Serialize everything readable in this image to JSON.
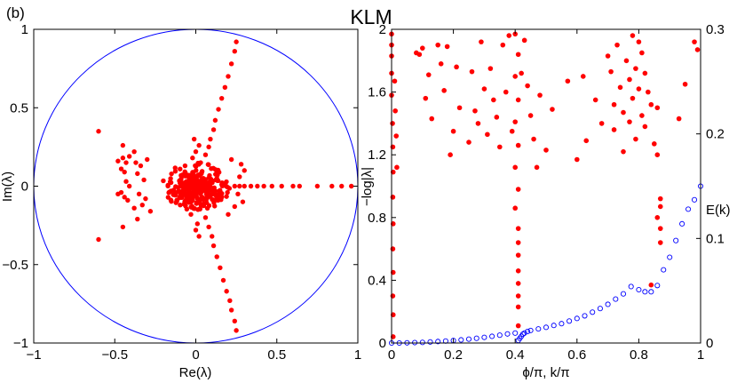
{
  "figure": {
    "panel_label": "(b)",
    "title": "KLM"
  },
  "colors": {
    "marker": "#ff0000",
    "marker_edge": "#cc0000",
    "circle": "#0000ff",
    "open_marker": "#0000ff",
    "axis": "#000000"
  },
  "chart_data": [
    {
      "type": "scatter",
      "name": "eigenvalue-plane",
      "title": "",
      "xlabel": "Re(λ)",
      "ylabel": "Im(λ)",
      "xlim": [
        -1,
        1
      ],
      "ylim": [
        -1,
        1
      ],
      "xticks": [
        -1,
        -0.5,
        0,
        0.5,
        1
      ],
      "xtick_labels": [
        "−1",
        "−0.5",
        "0",
        "0.5",
        "1"
      ],
      "yticks": [
        -1,
        -0.5,
        0,
        0.5,
        1
      ],
      "ytick_labels": [
        "−1",
        "−0.5",
        "0",
        "0.5",
        "1"
      ],
      "unit_circle": {
        "center": [
          0,
          0
        ],
        "radius": 1
      },
      "series": [
        {
          "name": "eigenvalues",
          "marker": "filled-dot",
          "points": [
            [
              0.25,
              0.92
            ],
            [
              0.24,
              0.86
            ],
            [
              0.22,
              0.78
            ],
            [
              0.2,
              0.7
            ],
            [
              0.18,
              0.63
            ],
            [
              0.16,
              0.56
            ],
            [
              0.14,
              0.49
            ],
            [
              0.12,
              0.42
            ],
            [
              0.11,
              0.36
            ],
            [
              0.09,
              0.3
            ],
            [
              0.08,
              0.25
            ],
            [
              0.06,
              0.2
            ],
            [
              0.25,
              -0.92
            ],
            [
              0.24,
              -0.86
            ],
            [
              0.22,
              -0.79
            ],
            [
              0.21,
              -0.73
            ],
            [
              0.19,
              -0.67
            ],
            [
              0.17,
              -0.6
            ],
            [
              0.15,
              -0.52
            ],
            [
              0.13,
              -0.45
            ],
            [
              0.11,
              -0.38
            ],
            [
              0.1,
              -0.32
            ],
            [
              0.08,
              -0.26
            ],
            [
              0.06,
              -0.2
            ],
            [
              -0.6,
              0.35
            ],
            [
              -0.6,
              -0.34
            ],
            [
              -0.45,
              0.26
            ],
            [
              -0.45,
              -0.26
            ],
            [
              -0.38,
              0.22
            ],
            [
              -0.36,
              -0.21
            ],
            [
              -0.3,
              0.17
            ],
            [
              -0.28,
              -0.16
            ],
            [
              0.96,
              0.0
            ],
            [
              0.9,
              0.0
            ],
            [
              0.84,
              0.0
            ],
            [
              0.75,
              0.0
            ],
            [
              0.64,
              0.0
            ],
            [
              0.6,
              0.0
            ],
            [
              0.53,
              0.0
            ],
            [
              0.47,
              0.0
            ],
            [
              0.42,
              0.0
            ],
            [
              0.38,
              0.0
            ],
            [
              0.34,
              0.0
            ],
            [
              0.3,
              0.0
            ],
            [
              0.27,
              0.0
            ],
            [
              0.24,
              0.0
            ],
            [
              -0.02,
              0.18
            ],
            [
              0.0,
              0.22
            ],
            [
              0.02,
              0.26
            ],
            [
              -0.01,
              0.3
            ],
            [
              0.03,
              0.15
            ],
            [
              -0.03,
              -0.18
            ],
            [
              0.01,
              -0.24
            ],
            [
              0.0,
              -0.28
            ],
            [
              0.02,
              -0.32
            ],
            [
              -0.45,
              0.18
            ],
            [
              -0.43,
              0.15
            ],
            [
              -0.46,
              0.11
            ],
            [
              -0.44,
              0.09
            ],
            [
              -0.48,
              0.16
            ],
            [
              -0.41,
              0.19
            ],
            [
              -0.46,
              -0.04
            ],
            [
              -0.44,
              -0.07
            ],
            [
              -0.48,
              -0.05
            ],
            [
              -0.42,
              -0.09
            ],
            [
              -0.43,
              0.03
            ],
            [
              -0.41,
              0.0
            ],
            [
              -0.36,
              0.08
            ],
            [
              -0.34,
              0.13
            ],
            [
              -0.32,
              0.04
            ],
            [
              -0.35,
              -0.05
            ],
            [
              -0.33,
              -0.12
            ],
            [
              -0.31,
              -0.08
            ],
            [
              -0.38,
              -0.14
            ],
            [
              -0.37,
              0.15
            ],
            [
              0.28,
              0.14
            ],
            [
              0.3,
              0.1
            ],
            [
              0.27,
              0.06
            ],
            [
              0.26,
              -0.05
            ],
            [
              0.29,
              -0.1
            ],
            [
              0.24,
              -0.13
            ],
            [
              0.22,
              0.17
            ],
            [
              0.2,
              -0.18
            ]
          ]
        }
      ]
    },
    {
      "type": "scatter",
      "name": "spectrum-vs-phase",
      "title": "",
      "xlabel": "ϕ/π, k/π",
      "ylabel": "−log|λ|",
      "right_ylabel": "E(k)",
      "xlim": [
        0,
        1
      ],
      "ylim": [
        0,
        2
      ],
      "right_ylim": [
        0,
        0.3
      ],
      "xticks": [
        0,
        0.2,
        0.4,
        0.6,
        0.8,
        1
      ],
      "xtick_labels": [
        "0",
        "0.2",
        "0.4",
        "0.6",
        "0.8",
        "1"
      ],
      "yticks": [
        0,
        0.4,
        0.8,
        1.2,
        1.6,
        2
      ],
      "ytick_labels": [
        "0",
        "0.4",
        "0.8",
        "1.2",
        "1.6",
        "2"
      ],
      "right_yticks": [
        0,
        0.1,
        0.2,
        0.3
      ],
      "right_ytick_labels": [
        "0",
        "0.1",
        "0.2",
        "0.3"
      ],
      "series": [
        {
          "name": "-log|lambda| vs phi",
          "axis": "left",
          "marker": "filled-dot",
          "points": [
            [
              0.0,
              1.97
            ],
            [
              0.0,
              1.9
            ],
            [
              0.0,
              1.83
            ],
            [
              0.0,
              1.72
            ],
            [
              0.0,
              1.58
            ],
            [
              0.003,
              1.4
            ],
            [
              0.004,
              1.25
            ],
            [
              0.005,
              1.09
            ],
            [
              0.004,
              0.93
            ],
            [
              0.005,
              0.76
            ],
            [
              0.004,
              0.6
            ],
            [
              0.005,
              0.45
            ],
            [
              0.004,
              0.3
            ],
            [
              0.005,
              0.18
            ],
            [
              0.005,
              0.04
            ],
            [
              0.01,
              1.67
            ],
            [
              0.012,
              1.48
            ],
            [
              0.015,
              1.32
            ],
            [
              0.017,
              1.12
            ],
            [
              0.08,
              1.85
            ],
            [
              0.09,
              1.84
            ],
            [
              0.1,
              1.88
            ],
            [
              0.11,
              1.56
            ],
            [
              0.12,
              1.71
            ],
            [
              0.13,
              1.43
            ],
            [
              0.15,
              1.9
            ],
            [
              0.16,
              1.78
            ],
            [
              0.17,
              1.61
            ],
            [
              0.18,
              1.89
            ],
            [
              0.19,
              1.2
            ],
            [
              0.2,
              1.35
            ],
            [
              0.21,
              1.76
            ],
            [
              0.22,
              1.5
            ],
            [
              0.25,
              1.28
            ],
            [
              0.26,
              1.73
            ],
            [
              0.27,
              1.48
            ],
            [
              0.28,
              1.4
            ],
            [
              0.29,
              1.92
            ],
            [
              0.3,
              1.62
            ],
            [
              0.31,
              1.33
            ],
            [
              0.32,
              1.75
            ],
            [
              0.33,
              1.55
            ],
            [
              0.34,
              1.44
            ],
            [
              0.35,
              1.25
            ],
            [
              0.36,
              1.9
            ],
            [
              0.37,
              1.6
            ],
            [
              0.38,
              1.96
            ],
            [
              0.39,
              1.35
            ],
            [
              0.4,
              1.97
            ],
            [
              0.41,
              1.84
            ],
            [
              0.4,
              1.7
            ],
            [
              0.41,
              1.55
            ],
            [
              0.4,
              1.41
            ],
            [
              0.41,
              1.26
            ],
            [
              0.4,
              1.12
            ],
            [
              0.41,
              0.98
            ],
            [
              0.4,
              0.86
            ],
            [
              0.41,
              0.73
            ],
            [
              0.41,
              0.64
            ],
            [
              0.41,
              0.56
            ],
            [
              0.41,
              0.46
            ],
            [
              0.41,
              0.38
            ],
            [
              0.41,
              0.3
            ],
            [
              0.41,
              0.23
            ],
            [
              0.41,
              0.11
            ],
            [
              0.42,
              1.72
            ],
            [
              0.43,
              1.93
            ],
            [
              0.44,
              1.64
            ],
            [
              0.45,
              1.45
            ],
            [
              0.46,
              1.3
            ],
            [
              0.47,
              1.12
            ],
            [
              0.48,
              1.58
            ],
            [
              0.5,
              1.23
            ],
            [
              0.52,
              1.49
            ],
            [
              0.57,
              1.67
            ],
            [
              0.6,
              1.17
            ],
            [
              0.62,
              1.7
            ],
            [
              0.63,
              1.29
            ],
            [
              0.66,
              1.55
            ],
            [
              0.68,
              1.4
            ],
            [
              0.7,
              1.83
            ],
            [
              0.71,
              1.73
            ],
            [
              0.72,
              1.52
            ],
            [
              0.72,
              1.36
            ],
            [
              0.73,
              1.9
            ],
            [
              0.74,
              1.63
            ],
            [
              0.75,
              1.47
            ],
            [
              0.75,
              1.22
            ],
            [
              0.76,
              1.8
            ],
            [
              0.77,
              1.68
            ],
            [
              0.77,
              1.41
            ],
            [
              0.78,
              1.96
            ],
            [
              0.78,
              1.56
            ],
            [
              0.79,
              1.75
            ],
            [
              0.79,
              1.3
            ],
            [
              0.8,
              1.92
            ],
            [
              0.8,
              1.62
            ],
            [
              0.81,
              1.85
            ],
            [
              0.81,
              1.45
            ],
            [
              0.82,
              1.72
            ],
            [
              0.82,
              1.38
            ],
            [
              0.83,
              1.6
            ],
            [
              0.84,
              1.52
            ],
            [
              0.85,
              1.27
            ],
            [
              0.86,
              1.5
            ],
            [
              0.86,
              1.2
            ],
            [
              0.87,
              0.92
            ],
            [
              0.87,
              0.87
            ],
            [
              0.86,
              0.8
            ],
            [
              0.87,
              0.73
            ],
            [
              0.87,
              0.64
            ],
            [
              0.84,
              0.37
            ],
            [
              0.93,
              1.43
            ],
            [
              0.95,
              1.65
            ],
            [
              0.98,
              1.92
            ],
            [
              0.99,
              1.87
            ]
          ]
        },
        {
          "name": "E(k)",
          "axis": "right",
          "marker": "open-circle",
          "points": [
            [
              0.0,
              0.0
            ],
            [
              0.025,
              0.0
            ],
            [
              0.05,
              0.0002
            ],
            [
              0.075,
              0.0004
            ],
            [
              0.1,
              0.0006
            ],
            [
              0.125,
              0.001
            ],
            [
              0.15,
              0.0014
            ],
            [
              0.175,
              0.0019
            ],
            [
              0.2,
              0.0024
            ],
            [
              0.225,
              0.003
            ],
            [
              0.25,
              0.0037
            ],
            [
              0.275,
              0.0045
            ],
            [
              0.3,
              0.0054
            ],
            [
              0.325,
              0.0064
            ],
            [
              0.35,
              0.0075
            ],
            [
              0.375,
              0.0087
            ],
            [
              0.4,
              0.0095
            ],
            [
              0.41,
              0.0025
            ],
            [
              0.415,
              0.0045
            ],
            [
              0.42,
              0.0065
            ],
            [
              0.425,
              0.0085
            ],
            [
              0.43,
              0.0095
            ],
            [
              0.44,
              0.011
            ],
            [
              0.45,
              0.012
            ],
            [
              0.475,
              0.0135
            ],
            [
              0.5,
              0.015
            ],
            [
              0.525,
              0.0168
            ],
            [
              0.55,
              0.0185
            ],
            [
              0.575,
              0.021
            ],
            [
              0.6,
              0.0235
            ],
            [
              0.625,
              0.026
            ],
            [
              0.65,
              0.0295
            ],
            [
              0.675,
              0.033
            ],
            [
              0.7,
              0.037
            ],
            [
              0.725,
              0.042
            ],
            [
              0.75,
              0.047
            ],
            [
              0.775,
              0.054
            ],
            [
              0.8,
              0.051
            ],
            [
              0.82,
              0.049
            ],
            [
              0.84,
              0.049
            ],
            [
              0.86,
              0.055
            ],
            [
              0.88,
              0.07
            ],
            [
              0.9,
              0.082
            ],
            [
              0.92,
              0.098
            ],
            [
              0.94,
              0.114
            ],
            [
              0.96,
              0.128
            ],
            [
              0.98,
              0.137
            ],
            [
              1.0,
              0.15
            ]
          ]
        }
      ]
    }
  ]
}
